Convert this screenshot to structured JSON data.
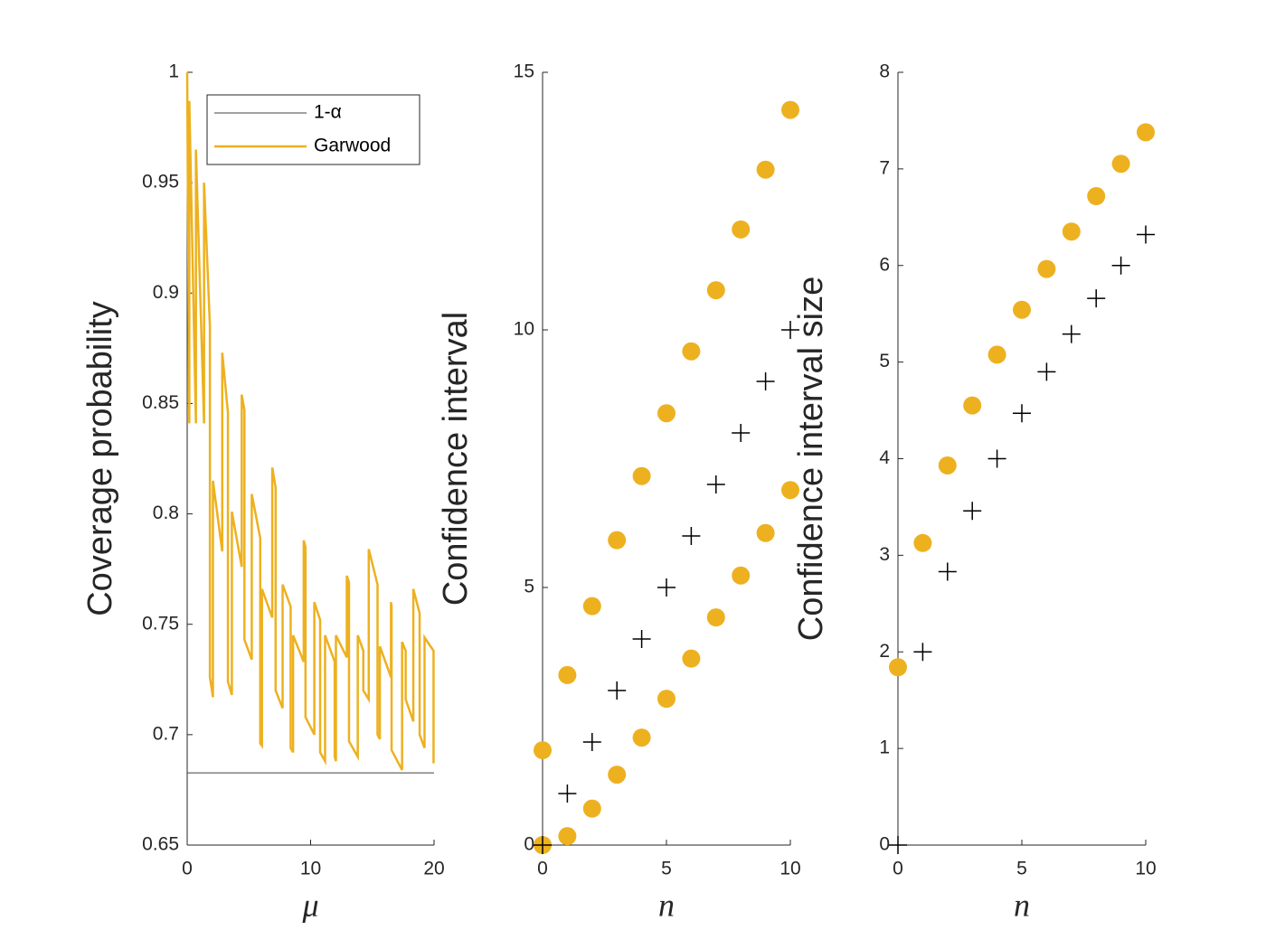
{
  "chart_data": [
    {
      "type": "line",
      "xlabel": "μ",
      "ylabel": "Coverage probability",
      "xlim": [
        0,
        20
      ],
      "xticks": [
        0,
        10,
        20
      ],
      "ylim": [
        0.65,
        1
      ],
      "yticks": [
        0.65,
        0.7,
        0.75,
        0.8,
        0.85,
        0.9,
        0.95,
        1
      ],
      "legend": "northeast",
      "series": [
        {
          "name": "1-α",
          "color": "#404040",
          "x": [
            0,
            20
          ],
          "values": [
            0.6827,
            0.6827
          ]
        },
        {
          "name": "Garwood",
          "color": "#edb120",
          "x": [
            0,
            0.173,
            0.173,
            0.708,
            0.708,
            1.367,
            1.367,
            1.841,
            1.841,
            2.086,
            2.086,
            2.84,
            2.84,
            3.3,
            3.3,
            3.62,
            3.62,
            4.419,
            4.419,
            4.638,
            4.638,
            5.232,
            5.232,
            5.918,
            5.918,
            6.057,
            6.057,
            6.891,
            6.891,
            7.163,
            7.163,
            7.73,
            7.73,
            8.382,
            8.382,
            8.58,
            8.58,
            9.44,
            9.44,
            9.584,
            9.584,
            10.3,
            10.3,
            10.77,
            10.77,
            11.17,
            11.17,
            11.95,
            11.95,
            12.05,
            12.05,
            12.93,
            12.93,
            13.11,
            13.11,
            13.82,
            13.82,
            14.27,
            14.27,
            14.71,
            14.71,
            15.42,
            15.42,
            15.61,
            15.61,
            16.51,
            16.51,
            16.56,
            16.56,
            17.41,
            17.41,
            17.7,
            17.7,
            18.32,
            18.32,
            18.83,
            18.83,
            19.23,
            19.23,
            19.96,
            19.96
          ],
          "values": [
            1.0,
            0.841,
            0.987,
            0.841,
            0.965,
            0.841,
            0.95,
            0.885,
            0.726,
            0.717,
            0.815,
            0.783,
            0.873,
            0.846,
            0.724,
            0.718,
            0.801,
            0.776,
            0.854,
            0.847,
            0.743,
            0.734,
            0.809,
            0.789,
            0.696,
            0.695,
            0.766,
            0.753,
            0.821,
            0.812,
            0.72,
            0.712,
            0.768,
            0.758,
            0.694,
            0.692,
            0.745,
            0.733,
            0.788,
            0.785,
            0.708,
            0.7,
            0.76,
            0.752,
            0.692,
            0.688,
            0.745,
            0.733,
            0.69,
            0.688,
            0.745,
            0.735,
            0.772,
            0.769,
            0.697,
            0.69,
            0.745,
            0.738,
            0.72,
            0.716,
            0.784,
            0.768,
            0.7,
            0.698,
            0.74,
            0.726,
            0.76,
            0.758,
            0.693,
            0.684,
            0.742,
            0.738,
            0.716,
            0.706,
            0.766,
            0.755,
            0.7,
            0.694,
            0.744,
            0.738,
            0.687
          ]
        }
      ]
    },
    {
      "type": "scatter",
      "xlabel": "n",
      "ylabel": "Confidence interval",
      "xlim": [
        0,
        10
      ],
      "xticks": [
        0,
        5,
        10
      ],
      "ylim": [
        0,
        15
      ],
      "yticks": [
        0,
        5,
        10,
        15
      ],
      "x": [
        0,
        1,
        2,
        3,
        4,
        5,
        6,
        7,
        8,
        9,
        10
      ],
      "series": [
        {
          "color": "#edb120",
          "marker": "o",
          "values": [
            1.841,
            3.3,
            4.638,
            5.918,
            7.163,
            8.382,
            9.584,
            10.77,
            11.95,
            13.11,
            14.27
          ]
        },
        {
          "color": "#edb120",
          "marker": "o",
          "values": [
            0,
            0.173,
            0.708,
            1.367,
            2.086,
            2.84,
            3.62,
            4.419,
            5.232,
            6.057,
            6.891
          ]
        },
        {
          "color": "#000000",
          "marker": "+",
          "values": [
            0,
            1,
            2,
            3,
            4,
            5,
            6,
            7,
            8,
            9,
            10
          ]
        }
      ]
    },
    {
      "type": "scatter",
      "xlabel": "n",
      "ylabel": "Confidence interval size",
      "xlim": [
        0,
        10
      ],
      "xticks": [
        0,
        5,
        10
      ],
      "ylim": [
        0,
        8
      ],
      "yticks": [
        0,
        1,
        2,
        3,
        4,
        5,
        6,
        7,
        8
      ],
      "x": [
        0,
        1,
        2,
        3,
        4,
        5,
        6,
        7,
        8,
        9,
        10
      ],
      "series": [
        {
          "color": "#edb120",
          "marker": "o",
          "values": [
            1.841,
            3.127,
            3.93,
            4.551,
            5.077,
            5.542,
            5.964,
            6.351,
            6.718,
            7.053,
            7.379
          ]
        },
        {
          "color": "#000000",
          "marker": "+",
          "values": [
            0,
            2,
            2.83,
            3.46,
            4,
            4.47,
            4.9,
            5.29,
            5.66,
            6,
            6.32
          ]
        }
      ]
    }
  ]
}
